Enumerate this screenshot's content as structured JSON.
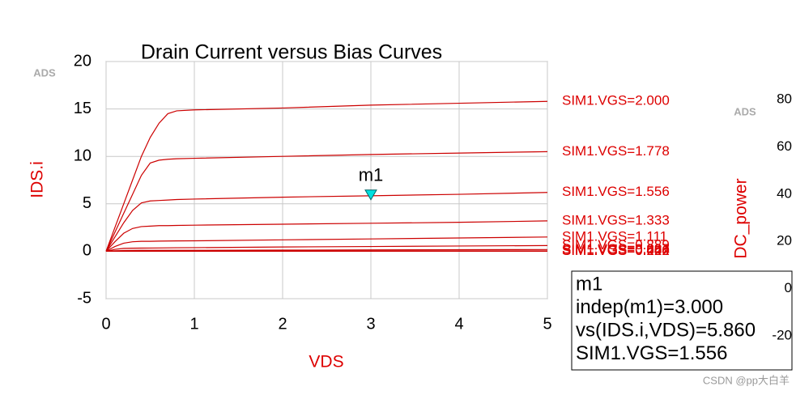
{
  "chart_data": [
    {
      "type": "line",
      "title": "Drain Current versus Bias Curves",
      "x_label": "VDS",
      "y_label": "IDS.i",
      "x": [
        0,
        0.1,
        0.2,
        0.3,
        0.4,
        0.5,
        0.6,
        0.7,
        0.8,
        1,
        2,
        3,
        4,
        5
      ],
      "series": [
        {
          "name": "SIM1.VGS=2.000",
          "color": "#cc0000",
          "values": [
            0,
            2.5,
            5,
            7.5,
            10,
            12,
            13.5,
            14.5,
            14.8,
            14.9,
            15.1,
            15.4,
            15.6,
            15.8
          ]
        },
        {
          "name": "SIM1.VGS=1.778",
          "color": "#cc0000",
          "values": [
            0,
            2,
            4,
            6,
            8,
            9.3,
            9.6,
            9.7,
            9.75,
            9.8,
            10,
            10.2,
            10.35,
            10.5
          ]
        },
        {
          "name": "SIM1.VGS=1.556",
          "color": "#cc0000",
          "values": [
            0,
            1.5,
            3,
            4.3,
            5.1,
            5.3,
            5.35,
            5.4,
            5.45,
            5.5,
            5.7,
            5.85,
            6.0,
            6.2
          ]
        },
        {
          "name": "SIM1.VGS=1.333",
          "color": "#cc0000",
          "values": [
            0,
            1,
            1.9,
            2.4,
            2.6,
            2.65,
            2.7,
            2.7,
            2.72,
            2.75,
            2.85,
            2.95,
            3.05,
            3.2
          ]
        },
        {
          "name": "SIM1.VGS=1.111",
          "color": "#cc0000",
          "values": [
            0,
            0.5,
            0.85,
            1.0,
            1.05,
            1.05,
            1.07,
            1.08,
            1.09,
            1.1,
            1.2,
            1.3,
            1.4,
            1.5
          ]
        },
        {
          "name": "SIM1.VGS=0.889",
          "color": "#cc0000",
          "values": [
            0,
            0.2,
            0.3,
            0.32,
            0.33,
            0.34,
            0.35,
            0.36,
            0.37,
            0.38,
            0.45,
            0.5,
            0.55,
            0.6
          ]
        },
        {
          "name": "SIM1.VGS=0.667",
          "color": "#cc0000",
          "values": [
            0,
            0.05,
            0.08,
            0.09,
            0.1,
            0.1,
            0.1,
            0.1,
            0.1,
            0.1,
            0.12,
            0.14,
            0.16,
            0.18
          ]
        },
        {
          "name": "SIM1.VGS=0.444",
          "color": "#cc0000",
          "values": [
            0,
            0.01,
            0.02,
            0.02,
            0.02,
            0.02,
            0.02,
            0.02,
            0.02,
            0.02,
            0.03,
            0.03,
            0.04,
            0.04
          ]
        },
        {
          "name": "SIM1.VGS=0.222",
          "color": "#cc0000",
          "values": [
            0,
            0,
            0,
            0,
            0,
            0,
            0,
            0,
            0,
            0,
            0,
            0,
            0,
            0
          ]
        },
        {
          "name": "SIM1.VGS=0.000",
          "color": "#cc0000",
          "values": [
            0,
            0,
            0,
            0,
            0,
            0,
            0,
            0,
            0,
            0,
            0,
            0,
            0,
            0
          ]
        }
      ],
      "xlim": [
        0,
        5
      ],
      "xticks": [
        0,
        1,
        2,
        3,
        4,
        5
      ],
      "ylim": [
        -5,
        20
      ],
      "yticks": [
        -5,
        0,
        5,
        10,
        15,
        20
      ],
      "grid": true,
      "marker": {
        "name": "m1",
        "x": 3,
        "y": 5.86,
        "color": "#00e0e0",
        "readout": [
          "m1",
          "indep(m1)=3.000",
          "vs(IDS.i,VDS)=5.860",
          "SIM1.VGS=1.556"
        ]
      },
      "logo": "ADS"
    },
    {
      "type": "line",
      "y_label": "DC_power",
      "series": [],
      "ylim": [
        -20,
        80
      ],
      "yticks": [
        -20,
        0,
        20,
        40,
        60,
        80
      ],
      "logo": "ADS"
    }
  ],
  "watermark": "CSDN @pp大白羊"
}
